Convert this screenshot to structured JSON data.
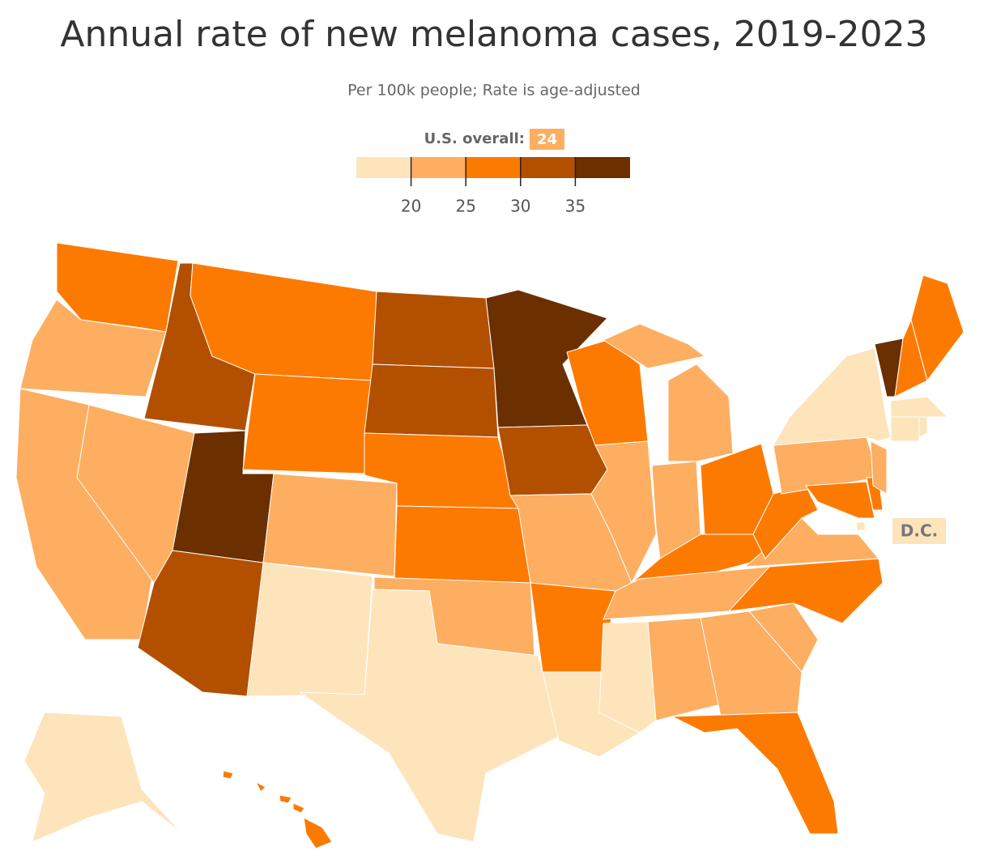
{
  "chart_data": {
    "type": "choropleth",
    "title": "Annual rate of new melanoma cases, 2019-2023",
    "subtitle": "Per 100k people; Rate is age-adjusted",
    "overall_label": "U.S. overall:",
    "overall_value": 24,
    "legend_lim": [
      15,
      40
    ],
    "ticks": [
      20,
      25,
      30,
      35
    ],
    "colors": [
      "#fde4bb",
      "#fdae61",
      "#fd7a00",
      "#b25000",
      "#6b2f00"
    ],
    "annotation": "D.C.",
    "values": [
      27.5,
      22.5,
      22.5,
      32.5,
      22.5,
      37.5,
      32.5,
      27.5,
      27.5,
      22.5,
      17.5,
      32.5,
      32.5,
      27.5,
      27.5,
      22.5,
      17.5,
      37.5,
      32.5,
      22.5,
      27.5,
      17.5,
      27.5,
      22.5,
      22.5,
      22.5,
      27.5,
      27.5,
      22.5,
      17.5,
      22.5,
      22.5,
      27.5,
      22.5,
      27.5,
      22.5,
      27.5,
      22.5,
      17.5,
      27.5,
      27.5,
      22.5,
      37.5,
      27.5,
      27.5,
      17.5,
      17.5,
      17.5,
      17.5,
      17.5,
      27.5
    ]
  }
}
